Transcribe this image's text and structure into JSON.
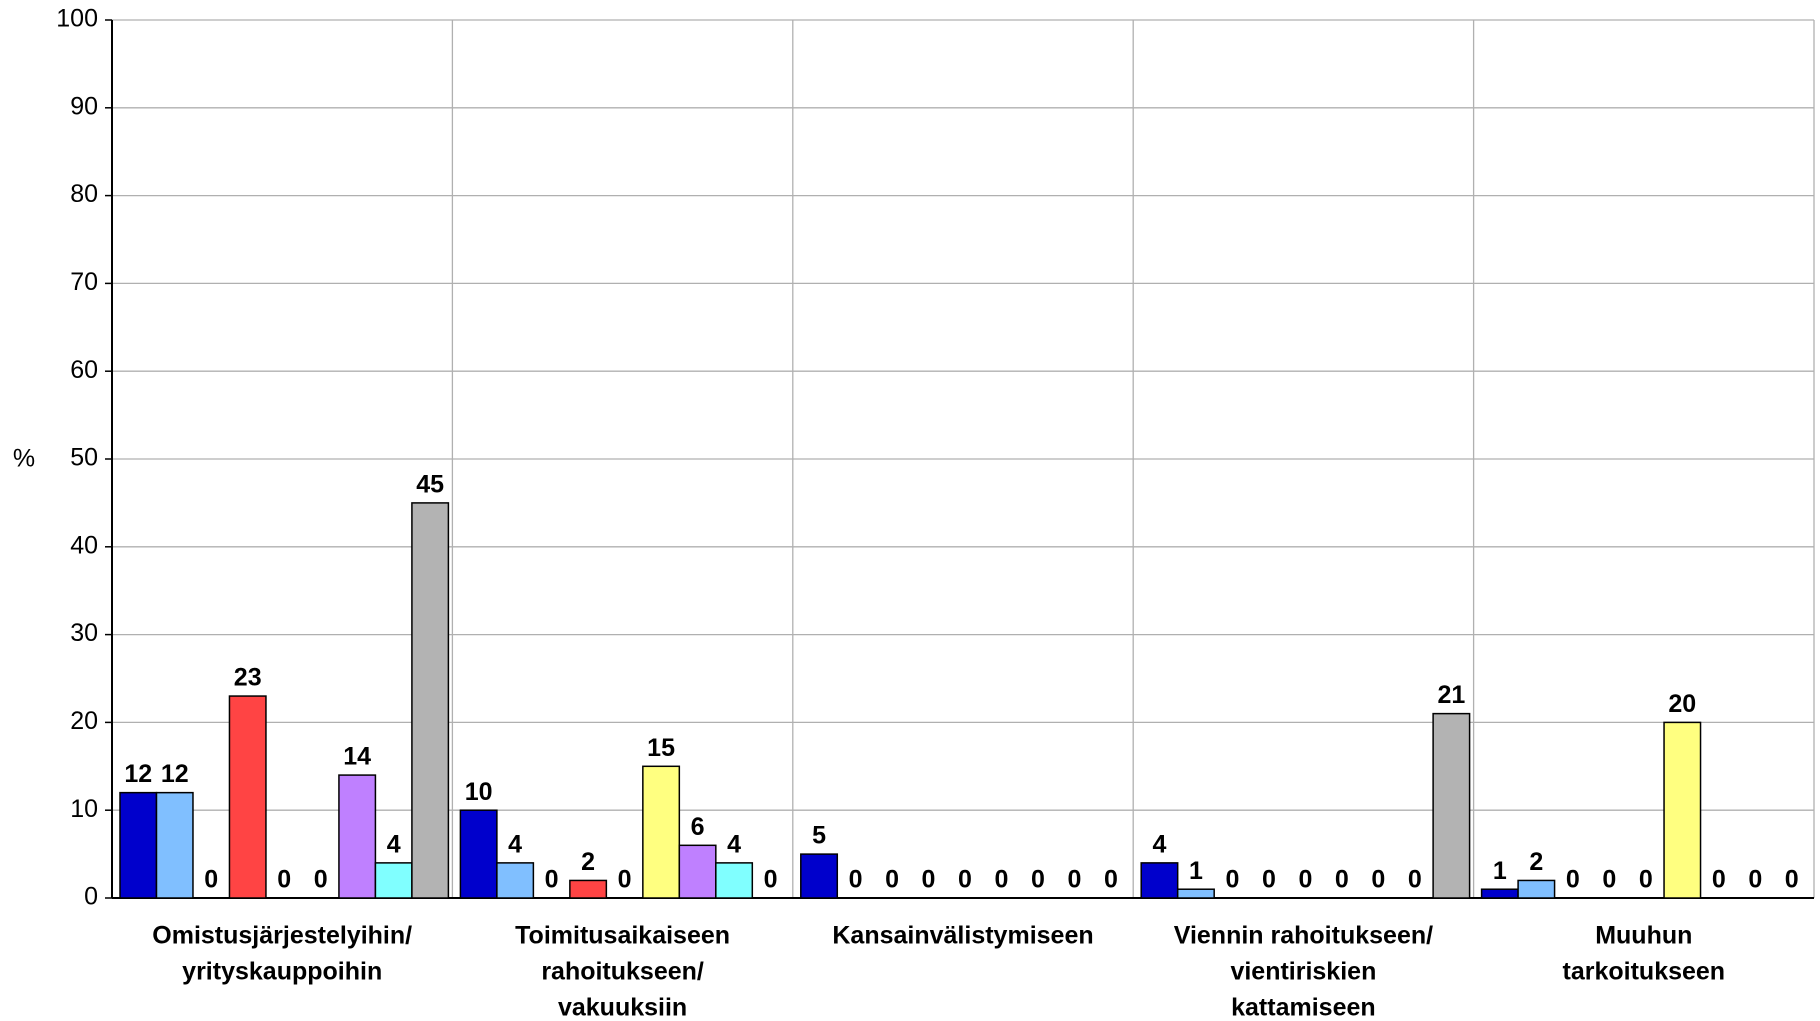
{
  "chart_data": {
    "type": "bar",
    "y_label": "%",
    "categories": [
      [
        "Omistusjärjestelyihin/",
        "yrityskauppoihin"
      ],
      [
        "Toimitusaikaiseen",
        "rahoitukseen/",
        "vakuuksiin"
      ],
      [
        "Kansainvälistymiseen"
      ],
      [
        "Viennin rahoitukseen/",
        "vientiriskien",
        "kattamiseen"
      ],
      [
        "Muuhun",
        "tarkoitukseen"
      ]
    ],
    "series": [
      {
        "color": "#0000cc",
        "values": [
          12,
          10,
          5,
          4,
          1
        ]
      },
      {
        "color": "#80bfff",
        "values": [
          12,
          4,
          0,
          1,
          2
        ]
      },
      {
        "values": [
          0,
          0,
          0,
          0,
          0
        ]
      },
      {
        "color": "#ff4444",
        "values": [
          23,
          2,
          0,
          0,
          0
        ]
      },
      {
        "values": [
          0,
          0,
          0,
          0,
          0
        ]
      },
      {
        "color": "#ffff80",
        "values": [
          0,
          15,
          0,
          0,
          20
        ]
      },
      {
        "color": "#bf80ff",
        "values": [
          14,
          6,
          0,
          0,
          0
        ]
      },
      {
        "color": "#80ffff",
        "values": [
          4,
          4,
          0,
          0,
          0
        ]
      },
      {
        "color": "#b3b3b3",
        "values": [
          45,
          0,
          0,
          21,
          0
        ]
      }
    ],
    "ylim": [
      0,
      100
    ],
    "yticks": [
      0,
      10,
      20,
      30,
      40,
      50,
      60,
      70,
      80,
      90,
      100
    ],
    "grid": true
  }
}
